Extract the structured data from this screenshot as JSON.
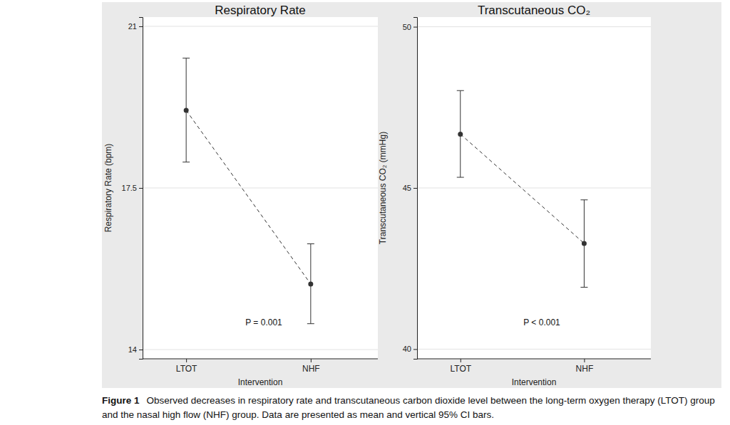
{
  "chart_data": [
    {
      "type": "line",
      "title": "Respiratory Rate",
      "x_label": "Intervention",
      "y_label": "Respiratory Rate (bpm)",
      "categories": [
        "LTOT",
        "NHF"
      ],
      "values": [
        19.18,
        15.42
      ],
      "ci_lower": [
        18.06,
        14.56
      ],
      "ci_upper": [
        20.31,
        16.29
      ],
      "color": "#333333",
      "marker": "circle",
      "line_style": "dashed",
      "ylim": [
        13.8,
        21.2
      ],
      "yticks": [
        14,
        17.5,
        21
      ],
      "grid": true,
      "annotations": [
        {
          "text": "P = 0.001"
        }
      ]
    },
    {
      "type": "line",
      "title": "Transcutaneous CO₂",
      "x_label": "Intervention",
      "y_label": "Transcutaneous CO₂ (mmHg)",
      "categories": [
        "LTOT",
        "NHF"
      ],
      "values": [
        46.67,
        43.28
      ],
      "ci_lower": [
        45.33,
        41.92
      ],
      "ci_upper": [
        48.02,
        44.63
      ],
      "color": "#333333",
      "marker": "circle",
      "line_style": "dashed",
      "ylim": [
        39.7,
        50.3
      ],
      "yticks": [
        40,
        45,
        50
      ],
      "grid": true,
      "annotations": [
        {
          "text": "P < 0.001"
        }
      ]
    }
  ],
  "figure": {
    "label": "Figure 1",
    "caption": "Observed decreases in respiratory rate and transcutaneous carbon dioxide level between the long-term oxygen therapy (LTOT) group and the nasal high flow (NHF) group. Data are presented as mean and vertical 95% CI bars."
  }
}
